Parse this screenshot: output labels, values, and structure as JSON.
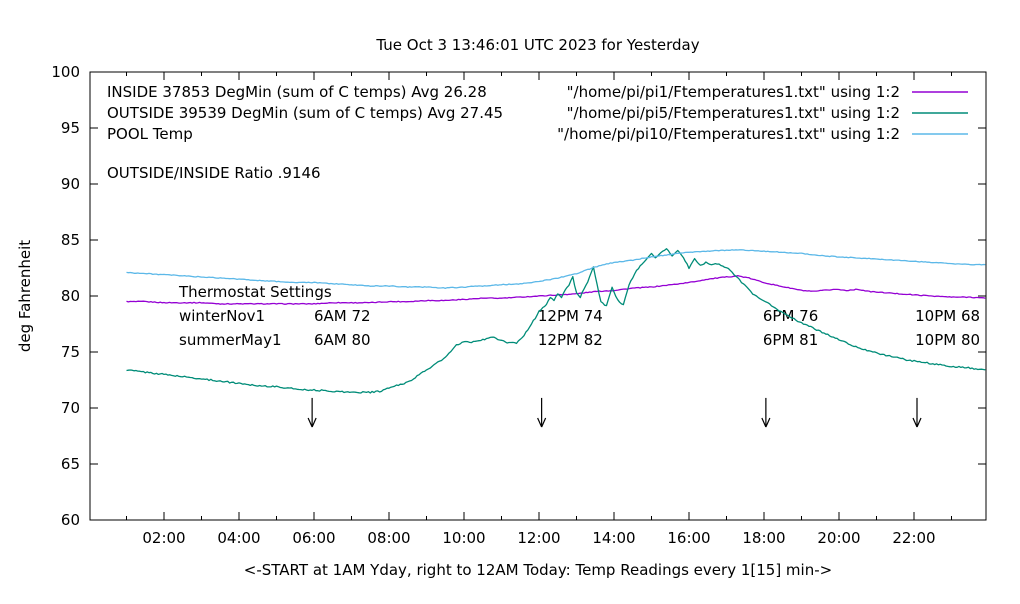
{
  "chart_data": {
    "type": "line",
    "title": "Tue Oct  3 13:46:01 UTC 2023 for Yesterday",
    "xlabel": "<-START at 1AM Yday, right to 12AM Today:  Temp Readings every 1[15] min->",
    "ylabel": "deg Fahrenheit",
    "ylim": [
      60,
      100
    ],
    "xlim_hours": [
      0.03,
      23.92
    ],
    "y_ticks": [
      60,
      65,
      70,
      75,
      80,
      85,
      90,
      95,
      100
    ],
    "x_tick_labels": [
      "02:00",
      "04:00",
      "06:00",
      "08:00",
      "10:00",
      "12:00",
      "14:00",
      "16:00",
      "18:00",
      "20:00",
      "22:00"
    ],
    "x_tick_hours": [
      2,
      4,
      6,
      8,
      10,
      12,
      14,
      16,
      18,
      20,
      22
    ],
    "grid": false,
    "legend_position": "top-inside",
    "legend": [
      {
        "label": "INSIDE 37853 DegMin (sum of C temps) Avg 26.28",
        "file": "\"/home/pi/pi1/Ftemperatures1.txt\" using 1:2",
        "color": "#9400d3"
      },
      {
        "label": "OUTSIDE 39539 DegMin (sum of C temps) Avg 27.45",
        "file": "\"/home/pi/pi5/Ftemperatures1.txt\" using 1:2",
        "color": "#008c78"
      },
      {
        "label": "POOL Temp",
        "file": "\"/home/pi/pi10/Ftemperatures1.txt\" using 1:2",
        "color": "#5cb8e8"
      }
    ],
    "annotations": {
      "ratio_label": "OUTSIDE/INSIDE Ratio .9146",
      "thermostat_title": "Thermostat Settings",
      "thermostat_rows": [
        {
          "name": "winterNov1",
          "settings": [
            "6AM 72",
            "12PM 74",
            "6PM 76",
            "10PM 68"
          ]
        },
        {
          "name": "summerMay1",
          "settings": [
            "6AM 80",
            "12PM 82",
            "6PM 81",
            "10PM 80"
          ]
        }
      ],
      "setting_column_hours": [
        6.0,
        11.97,
        17.97,
        22.03
      ],
      "arrow_hours": [
        5.95,
        12.07,
        18.05,
        22.08
      ],
      "arrow_from_temp": 70.9,
      "arrow_to_temp": 68.3
    },
    "series": [
      {
        "name": "INSIDE",
        "color": "#9400d3",
        "points": [
          [
            1,
            79.5
          ],
          [
            1.5,
            79.5
          ],
          [
            2,
            79.4
          ],
          [
            2.5,
            79.4
          ],
          [
            3,
            79.4
          ],
          [
            3.5,
            79.3
          ],
          [
            4,
            79.3
          ],
          [
            4.5,
            79.3
          ],
          [
            5,
            79.3
          ],
          [
            5.5,
            79.3
          ],
          [
            6,
            79.3
          ],
          [
            6.5,
            79.4
          ],
          [
            7,
            79.4
          ],
          [
            7.5,
            79.4
          ],
          [
            8,
            79.5
          ],
          [
            8.5,
            79.5
          ],
          [
            9,
            79.6
          ],
          [
            9.5,
            79.6
          ],
          [
            10,
            79.7
          ],
          [
            10.5,
            79.8
          ],
          [
            11,
            79.8
          ],
          [
            11.5,
            79.9
          ],
          [
            12,
            80.0
          ],
          [
            12.5,
            80.1
          ],
          [
            13,
            80.2
          ],
          [
            13.5,
            80.4
          ],
          [
            14,
            80.5
          ],
          [
            14.5,
            80.7
          ],
          [
            15,
            80.8
          ],
          [
            15.5,
            81.0
          ],
          [
            16,
            81.2
          ],
          [
            16.5,
            81.5
          ],
          [
            17,
            81.7
          ],
          [
            17.3,
            81.8
          ],
          [
            17.6,
            81.6
          ],
          [
            18,
            81.2
          ],
          [
            18.4,
            80.9
          ],
          [
            18.7,
            80.7
          ],
          [
            19,
            80.5
          ],
          [
            19.3,
            80.4
          ],
          [
            19.6,
            80.5
          ],
          [
            19.9,
            80.6
          ],
          [
            20.2,
            80.5
          ],
          [
            20.5,
            80.6
          ],
          [
            20.8,
            80.4
          ],
          [
            21.2,
            80.3
          ],
          [
            21.6,
            80.2
          ],
          [
            22,
            80.1
          ],
          [
            22.5,
            80.0
          ],
          [
            23,
            79.9
          ],
          [
            23.5,
            79.9
          ],
          [
            23.9,
            79.8
          ]
        ]
      },
      {
        "name": "OUTSIDE",
        "color": "#008c78",
        "points": [
          [
            1,
            73.4
          ],
          [
            1.5,
            73.2
          ],
          [
            2,
            73.0
          ],
          [
            2.5,
            72.8
          ],
          [
            3,
            72.6
          ],
          [
            3.5,
            72.4
          ],
          [
            4,
            72.2
          ],
          [
            4.5,
            72.0
          ],
          [
            5,
            71.9
          ],
          [
            5.5,
            71.7
          ],
          [
            6,
            71.6
          ],
          [
            6.5,
            71.5
          ],
          [
            7,
            71.4
          ],
          [
            7.5,
            71.4
          ],
          [
            7.8,
            71.5
          ],
          [
            8,
            71.8
          ],
          [
            8.5,
            72.3
          ],
          [
            9,
            73.4
          ],
          [
            9.5,
            74.5
          ],
          [
            9.8,
            75.6
          ],
          [
            10,
            75.9
          ],
          [
            10.3,
            75.9
          ],
          [
            10.6,
            76.2
          ],
          [
            10.8,
            76.3
          ],
          [
            11,
            76.0
          ],
          [
            11.2,
            75.8
          ],
          [
            11.4,
            75.8
          ],
          [
            11.6,
            76.5
          ],
          [
            11.8,
            77.5
          ],
          [
            12,
            78.6
          ],
          [
            12.2,
            79.3
          ],
          [
            12.3,
            79.9
          ],
          [
            12.4,
            79.6
          ],
          [
            12.5,
            80.2
          ],
          [
            12.6,
            79.8
          ],
          [
            12.7,
            80.6
          ],
          [
            12.8,
            81.0
          ],
          [
            12.9,
            81.7
          ],
          [
            13,
            80.3
          ],
          [
            13.1,
            79.9
          ],
          [
            13.2,
            80.6
          ],
          [
            13.3,
            81.2
          ],
          [
            13.45,
            82.6
          ],
          [
            13.55,
            81.0
          ],
          [
            13.65,
            79.5
          ],
          [
            13.8,
            79.1
          ],
          [
            13.95,
            80.8
          ],
          [
            14.1,
            79.6
          ],
          [
            14.25,
            79.2
          ],
          [
            14.4,
            81.0
          ],
          [
            14.6,
            82.3
          ],
          [
            14.8,
            83.0
          ],
          [
            15,
            83.8
          ],
          [
            15.1,
            83.4
          ],
          [
            15.25,
            83.9
          ],
          [
            15.4,
            84.2
          ],
          [
            15.55,
            83.6
          ],
          [
            15.7,
            84.1
          ],
          [
            15.85,
            83.4
          ],
          [
            16,
            82.5
          ],
          [
            16.15,
            83.3
          ],
          [
            16.3,
            82.7
          ],
          [
            16.45,
            83.0
          ],
          [
            16.6,
            82.8
          ],
          [
            16.75,
            82.9
          ],
          [
            16.9,
            82.7
          ],
          [
            17.1,
            82.3
          ],
          [
            17.3,
            81.6
          ],
          [
            17.5,
            80.9
          ],
          [
            17.7,
            80.2
          ],
          [
            18,
            79.6
          ],
          [
            18.3,
            78.9
          ],
          [
            18.6,
            78.3
          ],
          [
            19,
            77.6
          ],
          [
            19.4,
            77.0
          ],
          [
            19.8,
            76.4
          ],
          [
            20.2,
            75.8
          ],
          [
            20.6,
            75.3
          ],
          [
            21,
            74.9
          ],
          [
            21.4,
            74.6
          ],
          [
            21.8,
            74.3
          ],
          [
            22.2,
            74.1
          ],
          [
            22.6,
            73.9
          ],
          [
            23,
            73.7
          ],
          [
            23.4,
            73.6
          ],
          [
            23.9,
            73.4
          ]
        ]
      },
      {
        "name": "POOL",
        "color": "#5cb8e8",
        "points": [
          [
            1,
            82.1
          ],
          [
            1.5,
            82.0
          ],
          [
            2,
            81.9
          ],
          [
            2.5,
            81.8
          ],
          [
            3,
            81.7
          ],
          [
            3.5,
            81.6
          ],
          [
            4,
            81.5
          ],
          [
            4.5,
            81.4
          ],
          [
            5,
            81.3
          ],
          [
            5.5,
            81.2
          ],
          [
            6,
            81.2
          ],
          [
            6.5,
            81.1
          ],
          [
            7,
            81.0
          ],
          [
            7.5,
            80.9
          ],
          [
            8,
            80.9
          ],
          [
            8.5,
            80.8
          ],
          [
            9,
            80.8
          ],
          [
            9.5,
            80.7
          ],
          [
            10,
            80.8
          ],
          [
            10.5,
            80.9
          ],
          [
            11,
            81.0
          ],
          [
            11.5,
            81.1
          ],
          [
            12,
            81.3
          ],
          [
            12.5,
            81.6
          ],
          [
            13,
            82.0
          ],
          [
            13.5,
            82.6
          ],
          [
            14,
            83.0
          ],
          [
            14.5,
            83.2
          ],
          [
            15,
            83.5
          ],
          [
            15.5,
            83.7
          ],
          [
            16,
            83.9
          ],
          [
            16.5,
            84.0
          ],
          [
            17,
            84.1
          ],
          [
            17.5,
            84.1
          ],
          [
            18,
            84.0
          ],
          [
            18.5,
            83.9
          ],
          [
            19,
            83.8
          ],
          [
            19.5,
            83.6
          ],
          [
            20,
            83.5
          ],
          [
            20.5,
            83.4
          ],
          [
            21,
            83.3
          ],
          [
            21.5,
            83.2
          ],
          [
            22,
            83.1
          ],
          [
            22.5,
            83.0
          ],
          [
            23,
            82.9
          ],
          [
            23.5,
            82.8
          ],
          [
            23.9,
            82.8
          ]
        ]
      }
    ],
    "colors": {
      "axis": "#000000",
      "text": "#000000",
      "background": "#ffffff"
    }
  }
}
